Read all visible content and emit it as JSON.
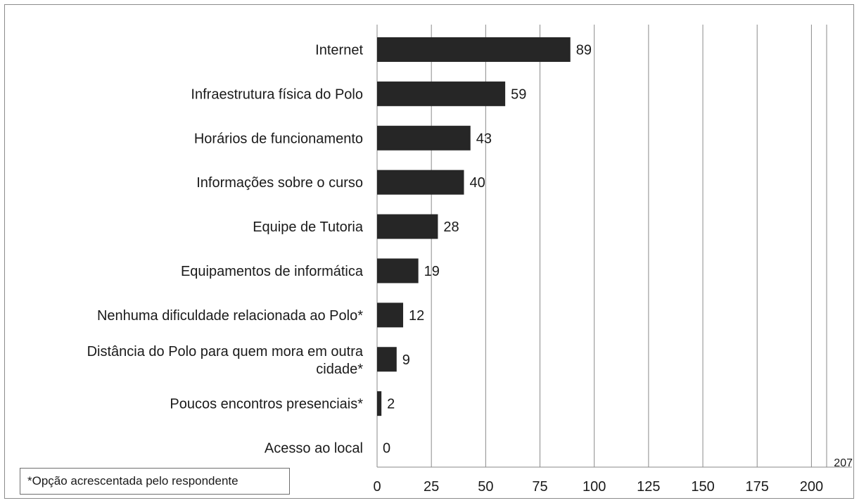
{
  "chart_data": {
    "type": "bar",
    "orientation": "horizontal",
    "categories": [
      "Internet",
      "Infraestrutura física do Polo",
      "Horários de funcionamento",
      "Informações sobre o curso",
      "Equipe de Tutoria",
      "Equipamentos de informática",
      "Nenhuma dificuldade relacionada ao Polo*",
      "Distância do Polo para quem mora em outra cidade*",
      "Poucos encontros presenciais*",
      "Acesso ao local"
    ],
    "values": [
      89,
      59,
      43,
      40,
      28,
      19,
      12,
      9,
      2,
      0
    ],
    "xlim": [
      0,
      207
    ],
    "xticks": [
      0,
      25,
      50,
      75,
      100,
      125,
      150,
      175,
      200
    ],
    "corner_label": "207",
    "grid": "vertical",
    "bar_color": "#262626",
    "footnote": "*Opção acrescentada pelo respondente"
  }
}
